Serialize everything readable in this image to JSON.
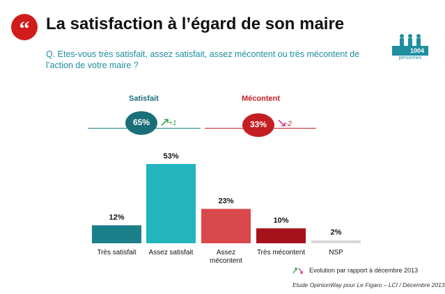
{
  "header": {
    "title": "La satisfaction à l’égard de son maire",
    "question": "Q. Etes-vous très satisfait, assez satisfait, assez mécontent ou très mécontent de l’action de votre maire ?",
    "sample_count": "1004",
    "sample_label": "personnes"
  },
  "summary": {
    "satisfied": {
      "label": "Satisfait",
      "value": "65%",
      "evolution": "+1"
    },
    "unsatisfied": {
      "label": "Mécontent",
      "value": "33%",
      "evolution": "-2"
    }
  },
  "footer": {
    "legend": "Evolution par rapport à décembre 2013",
    "source": "Etude OpinionWay pour Le Figaro – LCI / Décembre 2013"
  },
  "colors": {
    "teal_dark": "#1a7f88",
    "teal_light": "#22b5bd",
    "red_light": "#d9484c",
    "red_dark": "#a5121b",
    "grey": "#d9d9d9",
    "accent_red": "#d21c1c"
  },
  "chart_data": {
    "type": "bar",
    "title": "",
    "xlabel": "",
    "ylabel": "",
    "ylim": [
      0,
      53
    ],
    "categories": [
      "Très satisfait",
      "Assez satisfait",
      "Assez mécontent",
      "Très mécontent",
      "NSP"
    ],
    "values": [
      12,
      53,
      23,
      10,
      2
    ],
    "value_labels": [
      "12%",
      "53%",
      "23%",
      "10%",
      "2%"
    ]
  }
}
